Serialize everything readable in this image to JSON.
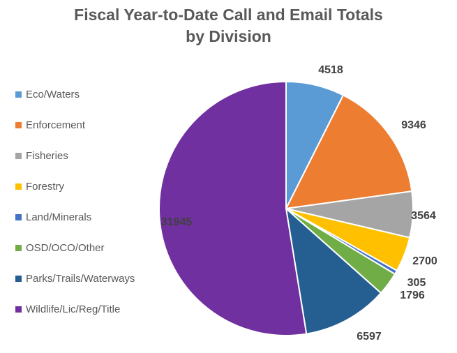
{
  "chart_data": {
    "type": "pie",
    "title": "Fiscal Year-to-Date Call and Email Totals by Division",
    "title_lines": [
      "Fiscal Year-to-Date Call and Email Totals",
      "by Division"
    ],
    "legend_position": "left",
    "slices": [
      {
        "label": "Eco/Waters",
        "value": 4518,
        "color": "#5B9BD5"
      },
      {
        "label": "Enforcement",
        "value": 9346,
        "color": "#ED7D31"
      },
      {
        "label": "Fisheries",
        "value": 3564,
        "color": "#A5A5A5"
      },
      {
        "label": "Forestry",
        "value": 2700,
        "color": "#FFC000"
      },
      {
        "label": "Land/Minerals",
        "value": 305,
        "color": "#4472C4"
      },
      {
        "label": "OSD/OCO/Other",
        "value": 1796,
        "color": "#70AD47"
      },
      {
        "label": "Parks/Trails/Waterways",
        "value": 6597,
        "color": "#255E91"
      },
      {
        "label": "Wildlife/Lic/Reg/Title",
        "value": 31945,
        "color": "#7030A0"
      }
    ]
  }
}
